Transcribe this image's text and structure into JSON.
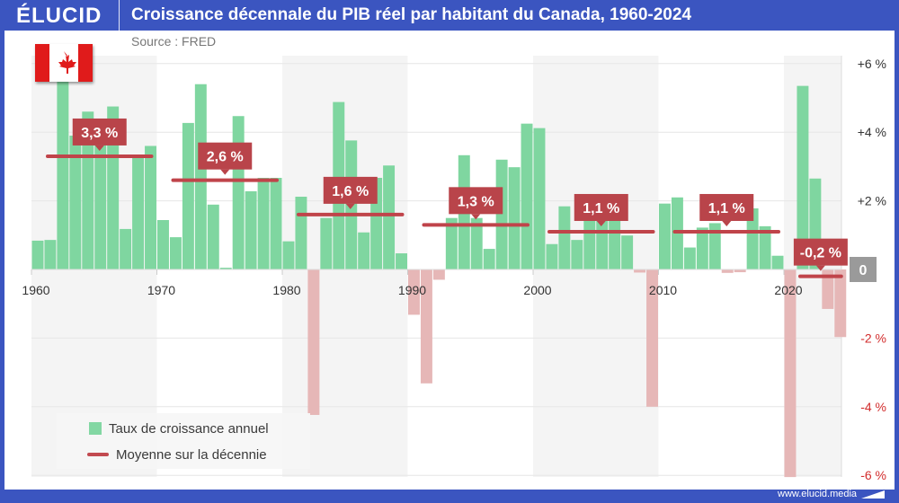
{
  "brand": "ÉLUCID",
  "title": "Croissance décennale du PIB réel par habitant du Canada, 1960-2024",
  "source": "Source : FRED",
  "footer_url": "www.elucid.media",
  "colors": {
    "frame": "#3b55c0",
    "positive": "#7fd6a0",
    "negative": "#e6b7b7",
    "mean": "#c0444a",
    "label_bg": "#b9444a",
    "axis_pos": "#333333",
    "axis_neg": "#d22c2c"
  },
  "chart_data": {
    "type": "bar",
    "title": "Croissance décennale du PIB réel par habitant du Canada, 1960-2024",
    "xlabel": "",
    "ylabel": "",
    "ylim": [
      -6,
      6
    ],
    "grid": true,
    "legend_placement": "bottom-left",
    "x_ticks": [
      "1960",
      "1970",
      "1980",
      "1990",
      "2000",
      "2010",
      "2020"
    ],
    "y_ticks": [
      {
        "v": 6,
        "label": "+6 %"
      },
      {
        "v": 4,
        "label": "+4 %"
      },
      {
        "v": 2,
        "label": "+2 %"
      },
      {
        "v": 0,
        "label": "0"
      },
      {
        "v": -2,
        "label": "-2 %"
      },
      {
        "v": -4,
        "label": "-4 %"
      },
      {
        "v": -6,
        "label": "-6 %"
      }
    ],
    "years": [
      1960,
      1961,
      1962,
      1963,
      1964,
      1965,
      1966,
      1967,
      1968,
      1969,
      1970,
      1971,
      1972,
      1973,
      1974,
      1975,
      1976,
      1977,
      1978,
      1979,
      1980,
      1981,
      1982,
      1983,
      1984,
      1985,
      1986,
      1987,
      1988,
      1989,
      1990,
      1991,
      1992,
      1993,
      1994,
      1995,
      1996,
      1997,
      1998,
      1999,
      2000,
      2001,
      2002,
      2003,
      2004,
      2005,
      2006,
      2007,
      2008,
      2009,
      2010,
      2011,
      2012,
      2013,
      2014,
      2015,
      2016,
      2017,
      2018,
      2019,
      2020,
      2021,
      2022,
      2023,
      2024
    ],
    "series": [
      {
        "name": "Taux de croissance annuel",
        "values": [
          0.84,
          0.86,
          5.6,
          3.9,
          4.6,
          4.0,
          4.75,
          1.18,
          3.3,
          3.6,
          1.44,
          0.94,
          4.27,
          5.4,
          1.89,
          0.05,
          4.47,
          2.28,
          2.67,
          2.67,
          0.82,
          2.12,
          -4.24,
          1.5,
          4.88,
          3.76,
          1.08,
          2.67,
          3.03,
          0.47,
          -1.32,
          -3.32,
          -0.3,
          1.5,
          3.33,
          1.5,
          0.6,
          3.2,
          2.98,
          4.25,
          4.12,
          0.74,
          1.84,
          0.86,
          1.6,
          2.2,
          1.6,
          0.99,
          -0.09,
          -4.0,
          1.92,
          2.1,
          0.64,
          1.22,
          1.35,
          -0.1,
          -0.08,
          1.78,
          1.26,
          0.4,
          -6.05,
          5.35,
          2.65,
          -1.15,
          -1.97
        ]
      },
      {
        "name": "Moyenne sur la décennie",
        "decades": [
          {
            "start": 1960,
            "end": 1969,
            "value": 3.3,
            "label": "3,3 %"
          },
          {
            "start": 1970,
            "end": 1979,
            "value": 2.6,
            "label": "2,6 %"
          },
          {
            "start": 1980,
            "end": 1989,
            "value": 1.6,
            "label": "1,6 %"
          },
          {
            "start": 1990,
            "end": 1999,
            "value": 1.3,
            "label": "1,3 %"
          },
          {
            "start": 2000,
            "end": 2009,
            "value": 1.1,
            "label": "1,1 %"
          },
          {
            "start": 2010,
            "end": 2019,
            "value": 1.1,
            "label": "1,1 %"
          },
          {
            "start": 2020,
            "end": 2024,
            "value": -0.2,
            "label": "-0,2 %"
          }
        ]
      }
    ]
  },
  "legend": {
    "items": [
      {
        "label": "Taux de croissance annuel",
        "icon": "green-square"
      },
      {
        "label": "Moyenne sur la décennie",
        "icon": "red-line"
      }
    ]
  }
}
